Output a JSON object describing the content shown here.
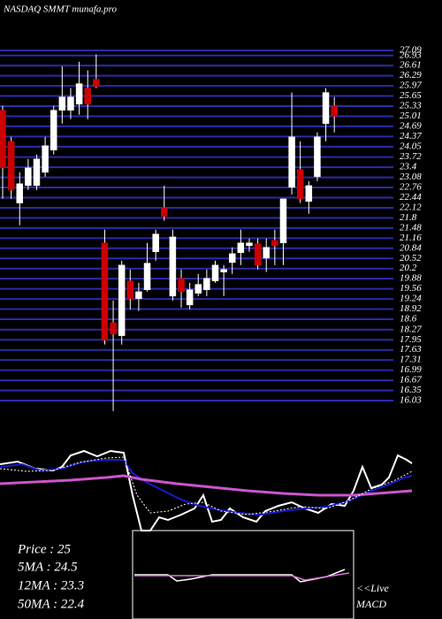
{
  "chart_data": {
    "type": "candlestick",
    "title": "NASDAQ SMMT munafa.pro",
    "ylim": [
      16.03,
      27.09
    ],
    "yticks": [
      27.09,
      26.93,
      26.61,
      26.29,
      25.97,
      25.65,
      25.33,
      25.01,
      24.69,
      24.37,
      24.05,
      23.72,
      23.4,
      23.08,
      22.76,
      22.44,
      22.12,
      21.8,
      21.48,
      21.16,
      20.84,
      20.52,
      20.2,
      19.88,
      19.56,
      19.24,
      18.92,
      18.6,
      18.27,
      17.95,
      17.63,
      17.31,
      16.99,
      16.67,
      16.35,
      16.03
    ],
    "grid": true,
    "grid_color": "#2b2ba8",
    "up_color": "#ffffff",
    "down_color": "#cc0000",
    "open": [
      25.2,
      24.22,
      22.27,
      22.82,
      22.82,
      23.24,
      23.94,
      25.2,
      25.2,
      25.39,
      25.9,
      26.18,
      21.01,
      18.49,
      18.08,
      19.81,
      19.25,
      19.53,
      20.73,
      22.13,
      19.33,
      19.89,
      19.05,
      19.42,
      19.53,
      19.81,
      20.09,
      20.39,
      20.7,
      20.92,
      20.98,
      20.53,
      21.09,
      21.01,
      22.77,
      23.33,
      22.32,
      23.1,
      24.78,
      25.34
    ],
    "high": [
      25.34,
      24.36,
      23.24,
      23.66,
      23.8,
      24.36,
      25.34,
      26.59,
      25.9,
      26.73,
      26.46,
      26.96,
      21.43,
      19.19,
      20.45,
      20.17,
      19.75,
      21.01,
      21.43,
      22.82,
      21.43,
      20.17,
      19.75,
      20.03,
      20.17,
      20.45,
      20.31,
      20.87,
      21.43,
      21.15,
      21.15,
      21.15,
      21.43,
      22.4,
      25.76,
      24.22,
      22.96,
      24.5,
      25.9,
      25.62
    ],
    "low": [
      22.4,
      22.4,
      21.57,
      22.68,
      22.68,
      23.1,
      23.8,
      24.78,
      24.92,
      25.06,
      24.92,
      25.9,
      17.8,
      15.7,
      17.8,
      18.91,
      18.86,
      19.47,
      20.45,
      21.71,
      19.19,
      18.97,
      18.91,
      19.33,
      19.33,
      19.75,
      19.33,
      20.03,
      20.31,
      20.73,
      20.17,
      20.09,
      20.31,
      20.31,
      22.54,
      22.27,
      21.93,
      22.96,
      24.22,
      24.5
    ],
    "close": [
      23.38,
      22.68,
      22.88,
      23.38,
      23.66,
      24.08,
      25.2,
      25.62,
      25.62,
      26.04,
      25.39,
      25.95,
      17.94,
      18.13,
      20.31,
      19.25,
      19.47,
      20.37,
      21.29,
      21.85,
      21.2,
      19.47,
      19.53,
      19.7,
      19.89,
      20.31,
      20.17,
      20.67,
      21.01,
      21.01,
      20.31,
      20.87,
      20.92,
      22.4,
      24.36,
      22.4,
      22.82,
      24.36,
      25.76,
      25.01
    ],
    "stats": [
      "Price   : 25",
      "5MA : 24.5",
      "12MA : 23.3",
      "50MA : 22.4"
    ],
    "live_label": "<<Live",
    "macd_label": "MACD"
  }
}
